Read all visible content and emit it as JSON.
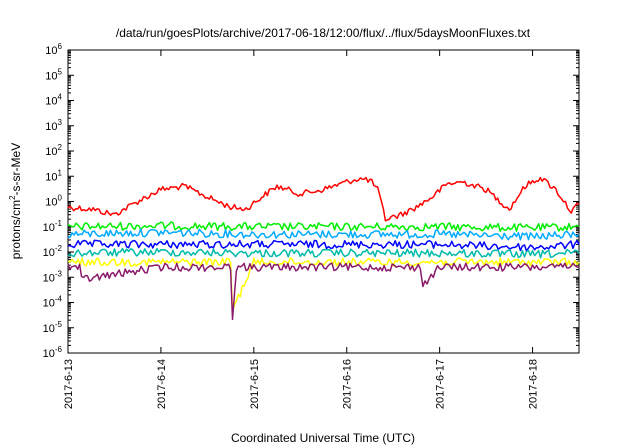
{
  "chart_data": {
    "type": "line",
    "title": "/data/run/goesPlots/archive/2017-06-18/12:00/flux/../flux/5daysMoonFluxes.txt",
    "xlabel": "Coordinated Universal Time (UTC)",
    "ylabel_parts": [
      "protons/cm",
      "2",
      "-s-sr-MeV"
    ],
    "y_scale": "log",
    "ylim": [
      1e-06,
      1000000.0
    ],
    "y_ticks": [
      {
        "value": 1e-06,
        "base": "10",
        "exp": "-6"
      },
      {
        "value": 1e-05,
        "base": "10",
        "exp": "-5"
      },
      {
        "value": 0.0001,
        "base": "10",
        "exp": "-4"
      },
      {
        "value": 0.001,
        "base": "10",
        "exp": "-3"
      },
      {
        "value": 0.01,
        "base": "10",
        "exp": "-2"
      },
      {
        "value": 0.1,
        "base": "10",
        "exp": "-1"
      },
      {
        "value": 1,
        "base": "10",
        "exp": "0"
      },
      {
        "value": 10,
        "base": "10",
        "exp": "1"
      },
      {
        "value": 100,
        "base": "10",
        "exp": "2"
      },
      {
        "value": 1000,
        "base": "10",
        "exp": "3"
      },
      {
        "value": 10000,
        "base": "10",
        "exp": "4"
      },
      {
        "value": 100000,
        "base": "10",
        "exp": "5"
      },
      {
        "value": 1000000,
        "base": "10",
        "exp": "6"
      }
    ],
    "xlim": [
      "2017-06-13T00:00",
      "2017-06-18T12:00"
    ],
    "x_ticks": [
      "2017-6-13",
      "2017-6-14",
      "2017-6-15",
      "2017-6-16",
      "2017-6-17",
      "2017-6-18"
    ],
    "grid": false,
    "legend": false,
    "series": [
      {
        "color": "#ff0000",
        "x": [
          "2017-06-13T00:00",
          "2017-06-13T06:00",
          "2017-06-13T12:00",
          "2017-06-13T18:00",
          "2017-06-14T00:00",
          "2017-06-14T06:00",
          "2017-06-14T09:00",
          "2017-06-14T12:00",
          "2017-06-14T18:00",
          "2017-06-14T22:00",
          "2017-06-15T02:00",
          "2017-06-15T06:00",
          "2017-06-15T12:00",
          "2017-06-15T18:00",
          "2017-06-16T00:00",
          "2017-06-16T03:00",
          "2017-06-16T06:00",
          "2017-06-16T08:00",
          "2017-06-16T10:00",
          "2017-06-16T14:00",
          "2017-06-16T18:00",
          "2017-06-16T22:00",
          "2017-06-17T02:00",
          "2017-06-17T06:00",
          "2017-06-17T12:00",
          "2017-06-17T18:00",
          "2017-06-17T22:00",
          "2017-06-18T02:00",
          "2017-06-18T06:00",
          "2017-06-18T10:00",
          "2017-06-18T12:00"
        ],
        "values": [
          0.6,
          0.5,
          0.3,
          1.0,
          3.0,
          4.0,
          2.5,
          1.5,
          0.6,
          0.5,
          1.5,
          4.0,
          2.0,
          3.0,
          6.0,
          8.0,
          7.0,
          3.0,
          0.2,
          0.3,
          0.6,
          1.5,
          5.0,
          6.0,
          3.0,
          0.5,
          4.0,
          9.0,
          3.0,
          0.4,
          0.8
        ]
      },
      {
        "color": "#00ee00",
        "x": [
          "2017-06-13T00:00",
          "2017-06-14T00:00",
          "2017-06-15T00:00",
          "2017-06-16T00:00",
          "2017-06-17T00:00",
          "2017-06-18T00:00",
          "2017-06-18T12:00"
        ],
        "values": [
          0.1,
          0.11,
          0.1,
          0.1,
          0.1,
          0.09,
          0.1
        ]
      },
      {
        "color": "#00aaff",
        "x": [
          "2017-06-13T00:00",
          "2017-06-14T00:00",
          "2017-06-15T00:00",
          "2017-06-16T00:00",
          "2017-06-17T00:00",
          "2017-06-18T00:00",
          "2017-06-18T12:00"
        ],
        "values": [
          0.05,
          0.06,
          0.05,
          0.05,
          0.05,
          0.04,
          0.05
        ]
      },
      {
        "color": "#0000ff",
        "x": [
          "2017-06-13T00:00",
          "2017-06-14T00:00",
          "2017-06-15T00:00",
          "2017-06-16T00:00",
          "2017-06-17T00:00",
          "2017-06-18T00:00",
          "2017-06-18T12:00"
        ],
        "values": [
          0.02,
          0.02,
          0.02,
          0.02,
          0.02,
          0.015,
          0.02
        ]
      },
      {
        "color": "#00bbaa",
        "x": [
          "2017-06-13T00:00",
          "2017-06-14T00:00",
          "2017-06-15T00:00",
          "2017-06-16T00:00",
          "2017-06-17T00:00",
          "2017-06-18T00:00",
          "2017-06-18T12:00"
        ],
        "values": [
          0.009,
          0.01,
          0.009,
          0.009,
          0.009,
          0.008,
          0.009
        ]
      },
      {
        "color": "#ffff00",
        "x": [
          "2017-06-13T00:00",
          "2017-06-14T00:00",
          "2017-06-14T18:00",
          "2017-06-14T18:30",
          "2017-06-15T00:00",
          "2017-06-16T00:00",
          "2017-06-17T00:00",
          "2017-06-18T00:00",
          "2017-06-18T12:00"
        ],
        "values": [
          0.004,
          0.004,
          0.004,
          5e-05,
          0.004,
          0.004,
          0.004,
          0.004,
          0.004
        ]
      },
      {
        "color": "#8b1a6a",
        "x": [
          "2017-06-13T00:00",
          "2017-06-13T03:00",
          "2017-06-13T03:30",
          "2017-06-14T00:00",
          "2017-06-14T18:00",
          "2017-06-14T18:30",
          "2017-06-14T19:30",
          "2017-06-15T00:00",
          "2017-06-16T19:00",
          "2017-06-16T19:40",
          "2017-06-17T00:00",
          "2017-06-18T00:00",
          "2017-06-18T12:00"
        ],
        "values": [
          0.0025,
          0.0025,
          0.0008,
          0.0025,
          0.0025,
          3e-05,
          0.0025,
          0.0025,
          0.0025,
          0.0005,
          0.0025,
          0.0025,
          0.0025
        ]
      }
    ]
  }
}
